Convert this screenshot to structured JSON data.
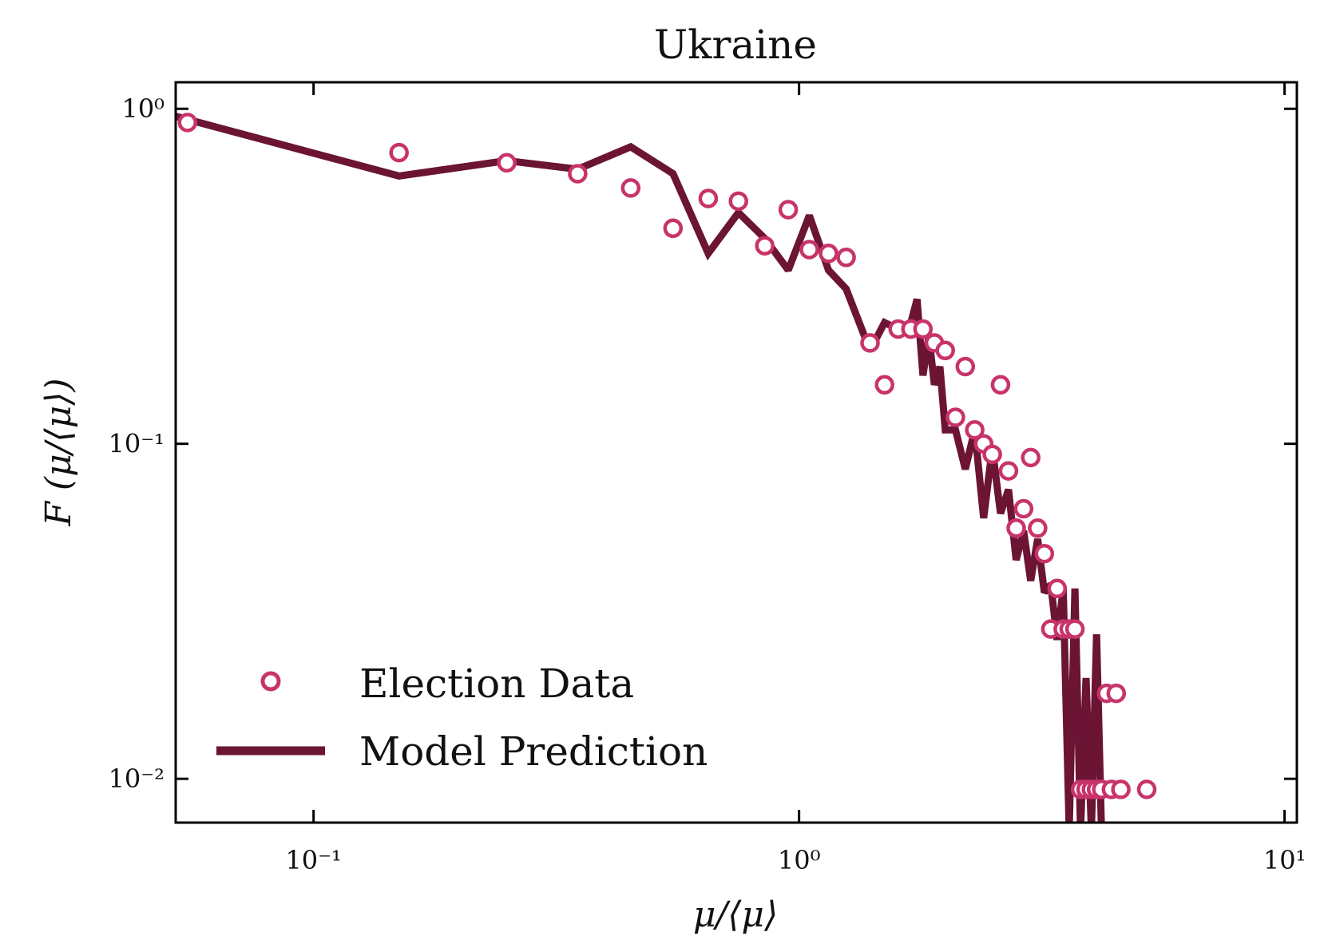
{
  "chart_data": {
    "type": "scatter",
    "title": "Ukraine",
    "xlabel": "μ/⟨μ⟩",
    "ylabel": "F (μ/⟨μ⟩)",
    "xscale": "log",
    "yscale": "log",
    "xlim": [
      0.052,
      10.6
    ],
    "ylim": [
      0.0074,
      1.2
    ],
    "x_ticks": [
      {
        "value": 0.1,
        "label": "10⁻¹"
      },
      {
        "value": 1,
        "label": "10⁰"
      },
      {
        "value": 10,
        "label": "10¹"
      }
    ],
    "y_ticks": [
      {
        "value": 1,
        "label": "10⁰"
      },
      {
        "value": 0.1,
        "label": "10⁻¹"
      },
      {
        "value": 0.01,
        "label": "10⁻²"
      }
    ],
    "grid": false,
    "legend_position": "lower-left",
    "colors": {
      "election_data": "#c8336a",
      "model_prediction": "#6b1433"
    },
    "series": [
      {
        "name": "Election Data",
        "kind": "scatter",
        "x": [
          0.055,
          0.15,
          0.25,
          0.35,
          0.45,
          0.55,
          0.65,
          0.75,
          0.85,
          0.95,
          1.05,
          1.15,
          1.25,
          1.4,
          1.5,
          1.6,
          1.7,
          1.8,
          1.9,
          2.0,
          2.1,
          2.2,
          2.3,
          2.4,
          2.5,
          2.6,
          2.7,
          2.8,
          2.9,
          3.0,
          3.1,
          3.2,
          3.3,
          3.4,
          3.5,
          3.6,
          3.7,
          3.8,
          3.9,
          4.0,
          4.1,
          4.2,
          4.3,
          4.4,
          4.5,
          4.6,
          5.2
        ],
        "y": [
          0.91,
          0.74,
          0.69,
          0.64,
          0.58,
          0.44,
          0.54,
          0.53,
          0.39,
          0.5,
          0.38,
          0.37,
          0.36,
          0.2,
          0.15,
          0.22,
          0.22,
          0.22,
          0.2,
          0.19,
          0.12,
          0.17,
          0.11,
          0.1,
          0.093,
          0.15,
          0.083,
          0.056,
          0.064,
          0.091,
          0.056,
          0.047,
          0.028,
          0.037,
          0.028,
          0.028,
          0.028,
          0.0093,
          0.0093,
          0.0093,
          0.0093,
          0.0093,
          0.018,
          0.0093,
          0.018,
          0.0093,
          0.0093
        ]
      },
      {
        "name": "Model Prediction",
        "kind": "line",
        "x": [
          0.052,
          0.15,
          0.25,
          0.35,
          0.45,
          0.55,
          0.65,
          0.75,
          0.85,
          0.95,
          1.05,
          1.15,
          1.25,
          1.4,
          1.5,
          1.6,
          1.7,
          1.75,
          1.8,
          1.85,
          1.9,
          1.95,
          2.0,
          2.1,
          2.2,
          2.3,
          2.4,
          2.5,
          2.6,
          2.7,
          2.8,
          2.9,
          3.0,
          3.1,
          3.2,
          3.3,
          3.4,
          3.5,
          3.6,
          3.7,
          3.8,
          3.9,
          4.0,
          4.1,
          4.2,
          4.3,
          4.4,
          4.5,
          4.6
        ],
        "y": [
          0.95,
          0.63,
          0.7,
          0.66,
          0.77,
          0.64,
          0.37,
          0.49,
          0.41,
          0.33,
          0.48,
          0.33,
          0.29,
          0.19,
          0.23,
          0.22,
          0.23,
          0.27,
          0.16,
          0.21,
          0.15,
          0.17,
          0.11,
          0.11,
          0.084,
          0.11,
          0.06,
          0.097,
          0.062,
          0.073,
          0.045,
          0.055,
          0.039,
          0.052,
          0.036,
          0.038,
          0.026,
          0.037,
          0.007,
          0.037,
          0.007,
          0.02,
          0.007,
          0.027,
          0.0066,
          0.007,
          0.0066,
          0.007,
          0.0066
        ]
      }
    ]
  }
}
